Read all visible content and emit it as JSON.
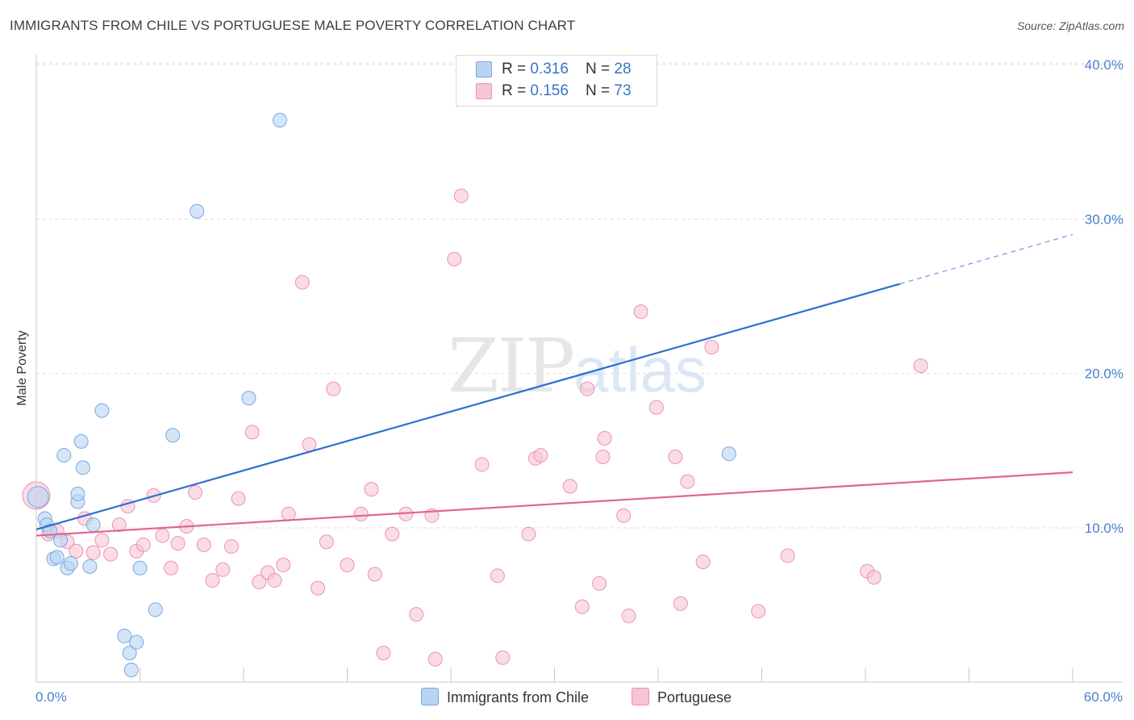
{
  "header": {
    "title": "IMMIGRANTS FROM CHILE VS PORTUGUESE MALE POVERTY CORRELATION CHART",
    "source": "Source: ZipAtlas.com"
  },
  "watermark": {
    "zip": "ZIP",
    "atlas": "atlas"
  },
  "legend": {
    "chile": {
      "r_label": "R = ",
      "r_value": "0.316",
      "n_label": "N = ",
      "n_value": "28"
    },
    "portuguese": {
      "r_label": "R = ",
      "r_value": "0.156",
      "n_label": "N = ",
      "n_value": "73"
    }
  },
  "bottom_legend": {
    "chile": "Immigrants from Chile",
    "portuguese": "Portuguese"
  },
  "colors": {
    "chile_fill": "#b9d4f3",
    "chile_stroke": "#7aa7e0",
    "chile_line": "#2f6fcf",
    "portuguese_fill": "#f7c5d4",
    "portuguese_stroke": "#ec93b0",
    "portuguese_line": "#e0658f",
    "tick_label": "#4a7fcf",
    "grid": "#dddddd"
  },
  "chart_data": {
    "type": "scatter",
    "title": "IMMIGRANTS FROM CHILE VS PORTUGUESE MALE POVERTY CORRELATION CHART",
    "xlabel": "",
    "ylabel": "Male Poverty",
    "xlim": [
      0,
      60
    ],
    "ylim": [
      0,
      42
    ],
    "x_tick_labels": [
      "0.0%",
      "60.0%"
    ],
    "y_ticks": [
      10,
      20,
      30,
      40
    ],
    "y_tick_labels": [
      "10.0%",
      "20.0%",
      "30.0%",
      "40.0%"
    ],
    "grid": true,
    "series": [
      {
        "name": "Immigrants from Chile",
        "R": 0.316,
        "N": 28,
        "points": [
          [
            0.1,
            12.0
          ],
          [
            0.5,
            10.6
          ],
          [
            0.6,
            10.2
          ],
          [
            0.8,
            9.8
          ],
          [
            1.0,
            8.0
          ],
          [
            1.2,
            8.1
          ],
          [
            1.4,
            9.2
          ],
          [
            1.6,
            14.7
          ],
          [
            1.8,
            7.4
          ],
          [
            2.0,
            7.7
          ],
          [
            2.4,
            11.7
          ],
          [
            2.4,
            12.2
          ],
          [
            2.6,
            15.6
          ],
          [
            2.7,
            13.9
          ],
          [
            3.1,
            7.5
          ],
          [
            3.3,
            10.2
          ],
          [
            3.8,
            17.6
          ],
          [
            5.1,
            3.0
          ],
          [
            5.4,
            1.9
          ],
          [
            5.5,
            0.8
          ],
          [
            5.8,
            2.6
          ],
          [
            6.0,
            7.4
          ],
          [
            6.9,
            4.7
          ],
          [
            7.9,
            16.0
          ],
          [
            9.3,
            30.5
          ],
          [
            12.3,
            18.4
          ],
          [
            14.1,
            36.4
          ],
          [
            40.1,
            14.8
          ]
        ],
        "trend": {
          "x0": 0,
          "y0": 9.9,
          "x1": 50,
          "y1": 25.8,
          "dashed_to_x": 60,
          "dashed_to_y": 29.0
        }
      },
      {
        "name": "Portuguese",
        "R": 0.156,
        "N": 73,
        "points": [
          [
            0.0,
            12.1
          ],
          [
            0.7,
            9.6
          ],
          [
            1.2,
            9.8
          ],
          [
            1.8,
            9.1
          ],
          [
            2.3,
            8.5
          ],
          [
            2.8,
            10.6
          ],
          [
            3.3,
            8.4
          ],
          [
            3.8,
            9.2
          ],
          [
            4.3,
            8.3
          ],
          [
            4.8,
            10.2
          ],
          [
            5.3,
            11.4
          ],
          [
            5.8,
            8.5
          ],
          [
            6.2,
            8.9
          ],
          [
            6.8,
            12.1
          ],
          [
            7.3,
            9.5
          ],
          [
            7.8,
            7.4
          ],
          [
            8.2,
            9.0
          ],
          [
            8.7,
            10.1
          ],
          [
            9.2,
            12.3
          ],
          [
            9.7,
            8.9
          ],
          [
            10.2,
            6.6
          ],
          [
            10.8,
            7.3
          ],
          [
            11.3,
            8.8
          ],
          [
            11.7,
            11.9
          ],
          [
            12.5,
            16.2
          ],
          [
            12.9,
            6.5
          ],
          [
            13.4,
            7.1
          ],
          [
            13.8,
            6.6
          ],
          [
            14.3,
            7.6
          ],
          [
            14.6,
            10.9
          ],
          [
            15.4,
            25.9
          ],
          [
            15.8,
            15.4
          ],
          [
            16.3,
            6.1
          ],
          [
            16.8,
            9.1
          ],
          [
            17.2,
            19.0
          ],
          [
            18.0,
            7.6
          ],
          [
            18.8,
            10.9
          ],
          [
            19.4,
            12.5
          ],
          [
            19.6,
            7.0
          ],
          [
            20.1,
            1.9
          ],
          [
            20.6,
            9.6
          ],
          [
            21.4,
            10.9
          ],
          [
            22.0,
            4.4
          ],
          [
            22.9,
            10.8
          ],
          [
            23.1,
            1.5
          ],
          [
            24.2,
            27.4
          ],
          [
            24.6,
            31.5
          ],
          [
            25.8,
            14.1
          ],
          [
            26.7,
            6.9
          ],
          [
            27.0,
            1.6
          ],
          [
            28.5,
            9.6
          ],
          [
            28.9,
            14.5
          ],
          [
            29.2,
            14.7
          ],
          [
            30.9,
            12.7
          ],
          [
            31.6,
            4.9
          ],
          [
            31.9,
            19.0
          ],
          [
            32.6,
            6.4
          ],
          [
            32.9,
            15.8
          ],
          [
            32.8,
            14.6
          ],
          [
            34.0,
            10.8
          ],
          [
            34.3,
            4.3
          ],
          [
            35.0,
            24.0
          ],
          [
            35.9,
            17.8
          ],
          [
            37.0,
            14.6
          ],
          [
            37.3,
            5.1
          ],
          [
            37.7,
            13.0
          ],
          [
            38.6,
            7.8
          ],
          [
            39.1,
            21.7
          ],
          [
            41.8,
            4.6
          ],
          [
            43.5,
            8.2
          ],
          [
            48.1,
            7.2
          ],
          [
            48.5,
            6.8
          ],
          [
            51.2,
            20.5
          ]
        ],
        "trend": {
          "x0": 0,
          "y0": 9.5,
          "x1": 60,
          "y1": 13.6
        }
      }
    ]
  }
}
